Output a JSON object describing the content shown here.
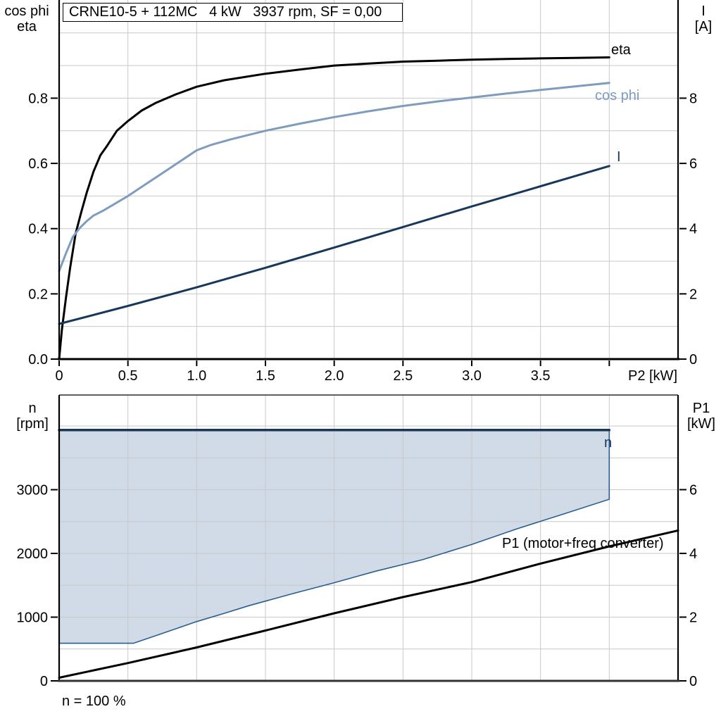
{
  "chart_data": [
    {
      "id": "motor-performance",
      "type": "line",
      "title": "CRNE10-5 + 112MC   4 kW   3937 rpm, SF = 0,00",
      "x_axis": {
        "label": "P2 [kW]",
        "range": [
          0,
          4.5
        ],
        "grid_step": 0.5,
        "ticks": [
          {
            "v": 0,
            "t": "0"
          },
          {
            "v": 0.5,
            "t": "0.5"
          },
          {
            "v": 1,
            "t": "1.0"
          },
          {
            "v": 1.5,
            "t": "1.5"
          },
          {
            "v": 2,
            "t": "2.0"
          },
          {
            "v": 2.5,
            "t": "2.5"
          },
          {
            "v": 3,
            "t": "3.0"
          },
          {
            "v": 3.5,
            "t": "3.5"
          },
          {
            "v": 4,
            "t": ""
          }
        ]
      },
      "left_axis": {
        "labels": [
          "cos phi",
          "eta"
        ],
        "range": [
          0,
          1.101
        ],
        "minor_grid_step": 0.1,
        "ticks": [
          {
            "v": 0,
            "t": "0.0"
          },
          {
            "v": 0.2,
            "t": "0.2"
          },
          {
            "v": 0.4,
            "t": "0.4"
          },
          {
            "v": 0.6,
            "t": "0.6"
          },
          {
            "v": 0.8,
            "t": "0.8"
          }
        ]
      },
      "right_axis": {
        "labels": [
          "I",
          "[A]"
        ],
        "range": [
          0,
          11.01
        ],
        "ticks": [
          {
            "v": 0,
            "t": "0"
          },
          {
            "v": 2,
            "t": "2"
          },
          {
            "v": 4,
            "t": "4"
          },
          {
            "v": 6,
            "t": "6"
          },
          {
            "v": 8,
            "t": "8"
          }
        ]
      },
      "series": [
        {
          "name": "eta",
          "axis": "left",
          "color": "#000000",
          "width": 3,
          "points": [
            [
              0,
              0
            ],
            [
              0.02,
              0.09
            ],
            [
              0.05,
              0.19
            ],
            [
              0.08,
              0.28
            ],
            [
              0.12,
              0.385
            ],
            [
              0.16,
              0.45
            ],
            [
              0.2,
              0.51
            ],
            [
              0.25,
              0.575
            ],
            [
              0.3,
              0.625
            ],
            [
              0.35,
              0.655
            ],
            [
              0.42,
              0.7
            ],
            [
              0.5,
              0.73
            ],
            [
              0.6,
              0.762
            ],
            [
              0.7,
              0.785
            ],
            [
              0.85,
              0.812
            ],
            [
              1,
              0.835
            ],
            [
              1.2,
              0.855
            ],
            [
              1.5,
              0.875
            ],
            [
              1.75,
              0.888
            ],
            [
              2,
              0.9
            ],
            [
              2.25,
              0.906
            ],
            [
              2.5,
              0.912
            ],
            [
              2.75,
              0.915
            ],
            [
              3,
              0.918
            ],
            [
              3.25,
              0.92
            ],
            [
              3.5,
              0.922
            ],
            [
              3.75,
              0.9235
            ],
            [
              4,
              0.925
            ]
          ]
        },
        {
          "name": "cos phi",
          "axis": "left",
          "color": "#7d9cbe",
          "width": 3,
          "points": [
            [
              0,
              0.27
            ],
            [
              0.05,
              0.325
            ],
            [
              0.1,
              0.375
            ],
            [
              0.15,
              0.402
            ],
            [
              0.2,
              0.423
            ],
            [
              0.25,
              0.44
            ],
            [
              0.32,
              0.455
            ],
            [
              0.4,
              0.475
            ],
            [
              0.5,
              0.5
            ],
            [
              0.6,
              0.528
            ],
            [
              0.7,
              0.556
            ],
            [
              0.8,
              0.584
            ],
            [
              0.9,
              0.612
            ],
            [
              1,
              0.64
            ],
            [
              1.1,
              0.656
            ],
            [
              1.25,
              0.674
            ],
            [
              1.5,
              0.7
            ],
            [
              1.75,
              0.722
            ],
            [
              2,
              0.742
            ],
            [
              2.25,
              0.76
            ],
            [
              2.5,
              0.776
            ],
            [
              2.75,
              0.79
            ],
            [
              3,
              0.802
            ],
            [
              3.25,
              0.814
            ],
            [
              3.5,
              0.825
            ],
            [
              3.75,
              0.836
            ],
            [
              4,
              0.847
            ]
          ]
        },
        {
          "name": "I",
          "axis": "right",
          "color": "#17375d",
          "width": 3,
          "points": [
            [
              0,
              1.08
            ],
            [
              0.5,
              1.63
            ],
            [
              1,
              2.2
            ],
            [
              1.5,
              2.8
            ],
            [
              2,
              3.42
            ],
            [
              2.5,
              4.05
            ],
            [
              3,
              4.68
            ],
            [
              3.5,
              5.3
            ],
            [
              4,
              5.92
            ]
          ]
        }
      ]
    },
    {
      "id": "speed-and-input-power",
      "type": "line",
      "x_axis": {
        "label": "",
        "range": [
          0,
          4.5
        ],
        "grid_step": 0.5,
        "ticks": []
      },
      "left_axis": {
        "labels": [
          "n",
          "[rpm]"
        ],
        "range": [
          0,
          4486
        ],
        "minor_grid_step": 500,
        "ticks": [
          {
            "v": 0,
            "t": "0"
          },
          {
            "v": 1000,
            "t": "1000"
          },
          {
            "v": 2000,
            "t": "2000"
          },
          {
            "v": 3000,
            "t": "3000"
          }
        ]
      },
      "right_axis": {
        "labels": [
          "P1",
          "[kW]"
        ],
        "range": [
          0,
          8.97
        ],
        "ticks": [
          {
            "v": 0,
            "t": "0"
          },
          {
            "v": 2,
            "t": "2"
          },
          {
            "v": 4,
            "t": "4"
          },
          {
            "v": 6,
            "t": "6"
          }
        ]
      },
      "area": {
        "name": "speed-operating-range",
        "fill": "#d0dbe7",
        "boundary_color": "#2a5e8f",
        "upper_rpm": 3937,
        "lower_points": [
          [
            0,
            590
          ],
          [
            0.54,
            590
          ],
          [
            0.75,
            745
          ],
          [
            1,
            930
          ],
          [
            1.2,
            1060
          ],
          [
            1.38,
            1180
          ],
          [
            1.7,
            1370
          ],
          [
            2,
            1540
          ],
          [
            2.3,
            1720
          ],
          [
            2.64,
            1900
          ],
          [
            3,
            2140
          ],
          [
            3.32,
            2380
          ],
          [
            3.64,
            2600
          ],
          [
            4,
            2850
          ]
        ]
      },
      "series": [
        {
          "name": "n",
          "axis": "left",
          "color": "#17375d",
          "width": 3.5,
          "points": [
            [
              0,
              3937
            ],
            [
              4,
              3937
            ]
          ]
        },
        {
          "name": "P1 (motor+freq converter)",
          "axis": "right",
          "color": "#000000",
          "width": 3,
          "points": [
            [
              0,
              0.1
            ],
            [
              0.5,
              0.56
            ],
            [
              1,
              1.05
            ],
            [
              1.5,
              1.58
            ],
            [
              2,
              2.12
            ],
            [
              2.5,
              2.63
            ],
            [
              3,
              3.1
            ],
            [
              3.5,
              3.68
            ],
            [
              4,
              4.22
            ],
            [
              4.5,
              4.72
            ]
          ]
        }
      ],
      "footnote": "n = 100 %"
    }
  ],
  "style": {
    "grid_color": "#c9c9c9",
    "axis_color": "#000000",
    "bottom_axis_color": "#333333"
  }
}
